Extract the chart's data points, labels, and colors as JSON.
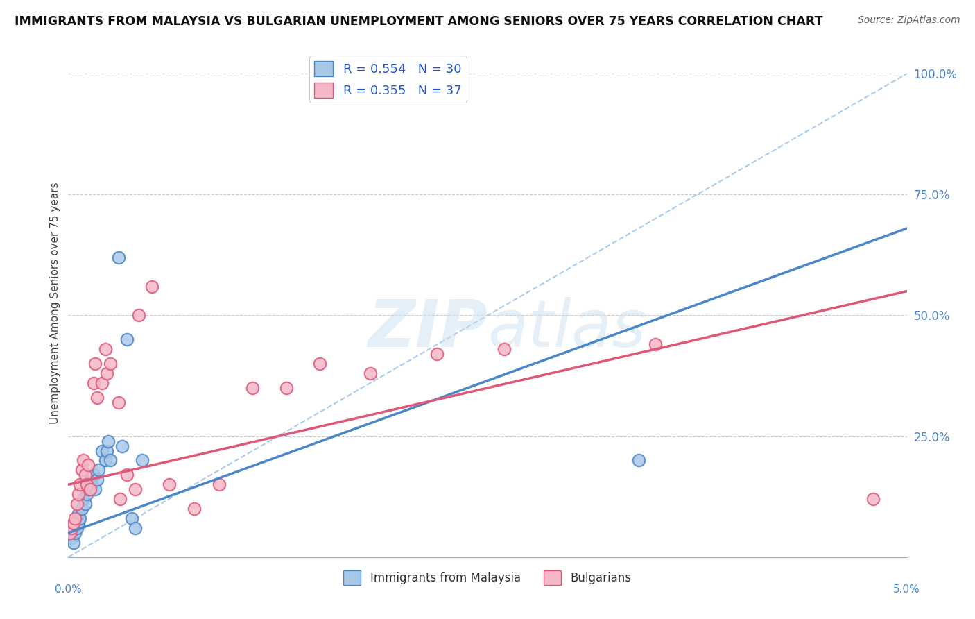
{
  "title": "IMMIGRANTS FROM MALAYSIA VS BULGARIAN UNEMPLOYMENT AMONG SENIORS OVER 75 YEARS CORRELATION CHART",
  "source": "Source: ZipAtlas.com",
  "ylabel": "Unemployment Among Seniors over 75 years",
  "xlim": [
    0.0,
    0.05
  ],
  "ylim": [
    0.0,
    1.05
  ],
  "background_color": "#ffffff",
  "watermark": "ZIPatlas",
  "blue_scatter_x": [
    0.0002,
    0.0003,
    0.0004,
    0.0005,
    0.0006,
    0.0006,
    0.0007,
    0.0008,
    0.0009,
    0.001,
    0.0011,
    0.0012,
    0.0013,
    0.0014,
    0.0015,
    0.0016,
    0.0017,
    0.0018,
    0.002,
    0.0022,
    0.0023,
    0.0024,
    0.0025,
    0.003,
    0.0032,
    0.0035,
    0.0038,
    0.004,
    0.0044,
    0.034
  ],
  "blue_scatter_y": [
    0.04,
    0.03,
    0.05,
    0.06,
    0.07,
    0.09,
    0.08,
    0.1,
    0.12,
    0.11,
    0.13,
    0.14,
    0.16,
    0.15,
    0.17,
    0.14,
    0.16,
    0.18,
    0.22,
    0.2,
    0.22,
    0.24,
    0.2,
    0.62,
    0.23,
    0.45,
    0.08,
    0.06,
    0.2,
    0.2
  ],
  "pink_scatter_x": [
    0.0001,
    0.0002,
    0.0003,
    0.0004,
    0.0005,
    0.0006,
    0.0007,
    0.0008,
    0.0009,
    0.001,
    0.0011,
    0.0012,
    0.0013,
    0.0015,
    0.0016,
    0.0017,
    0.002,
    0.0022,
    0.0023,
    0.0025,
    0.003,
    0.0031,
    0.0035,
    0.004,
    0.0042,
    0.005,
    0.006,
    0.0075,
    0.009,
    0.011,
    0.013,
    0.015,
    0.018,
    0.022,
    0.026,
    0.035,
    0.048
  ],
  "pink_scatter_y": [
    0.05,
    0.06,
    0.07,
    0.08,
    0.11,
    0.13,
    0.15,
    0.18,
    0.2,
    0.17,
    0.15,
    0.19,
    0.14,
    0.36,
    0.4,
    0.33,
    0.36,
    0.43,
    0.38,
    0.4,
    0.32,
    0.12,
    0.17,
    0.14,
    0.5,
    0.56,
    0.15,
    0.1,
    0.15,
    0.35,
    0.35,
    0.4,
    0.38,
    0.42,
    0.43,
    0.44,
    0.12
  ],
  "blue_color": "#a8c8e8",
  "blue_edge_color": "#4a86c8",
  "pink_color": "#f5b8c8",
  "pink_edge_color": "#e05878",
  "blue_R": 0.554,
  "blue_N": 30,
  "pink_R": 0.355,
  "pink_N": 37,
  "legend_label_blue": "Immigrants from Malaysia",
  "legend_label_pink": "Bulgarians",
  "blue_line_color": "#4a86c8",
  "pink_line_color": "#e05878",
  "dashed_line_color": "#aaccee",
  "blue_line_x0": 0.0,
  "blue_line_y0": 0.05,
  "blue_line_x1": 0.05,
  "blue_line_y1": 0.68,
  "pink_line_x0": 0.0,
  "pink_line_y0": 0.15,
  "pink_line_x1": 0.05,
  "pink_line_y1": 0.55
}
